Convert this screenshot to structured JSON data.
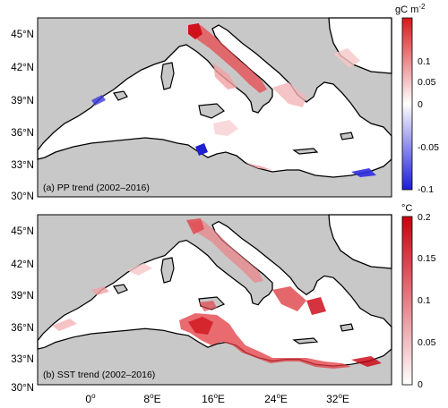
{
  "panels": [
    {
      "id": "pp",
      "label": "(a) PP trend (2002–2016)",
      "colorbar": {
        "unit": "gC m",
        "unit_sup": "-2",
        "ticks": [
          "0.1",
          "0.05",
          "0",
          "-0.05",
          "-0.1"
        ],
        "top_color": "#d7191c",
        "mid_color": "#ffffff",
        "bottom_color": "#1c1cd8"
      },
      "lat_labels": [
        "45°N",
        "42°N",
        "39°N",
        "36°N",
        "33°N",
        "30°N"
      ]
    },
    {
      "id": "sst",
      "label": "(b) SST trend (2002–2016)",
      "colorbar": {
        "unit": "°C",
        "unit_sup": "",
        "ticks": [
          "0.2",
          "0.15",
          "0.1",
          "0.05",
          "0"
        ],
        "top_color": "#c9000f",
        "bottom_color": "#ffffff"
      },
      "lat_labels": [
        "45°N",
        "42°N",
        "39°N",
        "36°N",
        "33°N",
        "30°N"
      ]
    }
  ],
  "lon_labels": [
    {
      "deg": "0",
      "hemi": ""
    },
    {
      "deg": "8",
      "hemi": "E"
    },
    {
      "deg": "16",
      "hemi": "E"
    },
    {
      "deg": "24",
      "hemi": "E"
    },
    {
      "deg": "32",
      "hemi": "E"
    }
  ],
  "land_color": "#c8c8c8",
  "sea_color": "#ffffff"
}
